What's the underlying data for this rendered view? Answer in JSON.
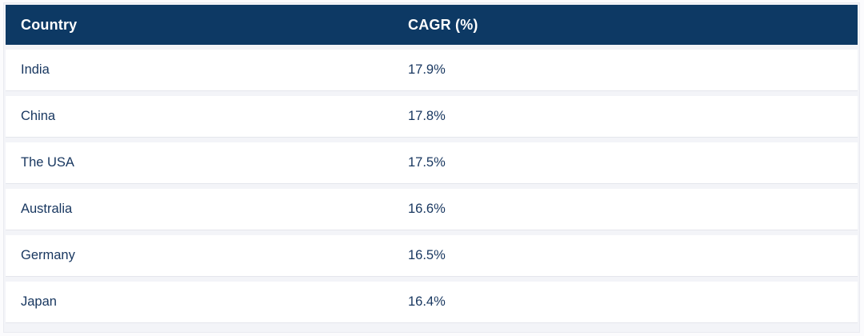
{
  "table": {
    "columns": [
      "Country",
      "CAGR (%)"
    ],
    "rows": [
      {
        "country": "India",
        "cagr": "17.9%"
      },
      {
        "country": "China",
        "cagr": "17.8%"
      },
      {
        "country": "The USA",
        "cagr": "17.5%"
      },
      {
        "country": "Australia",
        "cagr": "16.6%"
      },
      {
        "country": "Germany",
        "cagr": "16.5%"
      },
      {
        "country": "Japan",
        "cagr": "16.4%"
      }
    ]
  },
  "colors": {
    "header_bg": "#0D3964",
    "header_text": "#FFFFFF",
    "row_text": "#17365F",
    "row_bg": "#FFFFFF"
  },
  "chart_data": {
    "type": "table",
    "title": "",
    "columns": [
      "Country",
      "CAGR (%)"
    ],
    "categories": [
      "India",
      "China",
      "The USA",
      "Australia",
      "Germany",
      "Japan"
    ],
    "values": [
      17.9,
      17.8,
      17.5,
      16.6,
      16.5,
      16.4
    ]
  }
}
